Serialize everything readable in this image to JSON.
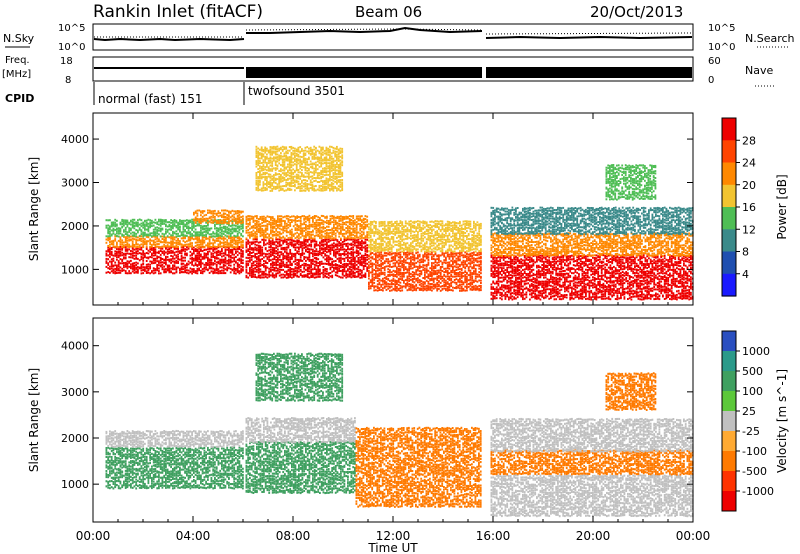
{
  "header": {
    "station": "Rankin Inlet (fitACF)",
    "beam": "Beam 06",
    "date": "20/Oct/2013"
  },
  "strip": {
    "nsky_label": "N.Sky",
    "nsky_ticks": [
      "10^5",
      "10^0"
    ],
    "nsearch_label": "N.Search",
    "nsearch_ticks": [
      "10^5",
      "10^0"
    ],
    "freq_label": "Freq.",
    "freq_unit": "[MHz]",
    "freq_ticks": [
      "18",
      "8"
    ],
    "nave_label": "Nave",
    "nave_ticks": [
      "60",
      "0"
    ],
    "cpid_label": "CPID",
    "cpid_modes": [
      {
        "name": "normal (fast) 151",
        "start_hour": 0,
        "end_hour": 6
      },
      {
        "name": "twofsound 3501",
        "start_hour": 6,
        "end_hour": 24
      }
    ]
  },
  "chart_data": [
    {
      "type": "heatmap",
      "title": "Power",
      "xlabel": "",
      "ylabel": "Slant Range [km]",
      "x_ticks": [
        "00:00",
        "04:00",
        "08:00",
        "12:00",
        "16:00",
        "20:00",
        "00:00"
      ],
      "xlim_hours": [
        0,
        24
      ],
      "y_ticks": [
        1000,
        2000,
        3000,
        4000
      ],
      "ylim": [
        180,
        4600
      ],
      "colorbar": {
        "label": "Power [dB]",
        "ticks": [
          4,
          8,
          12,
          16,
          20,
          24,
          28
        ],
        "colors": [
          "#1a1aff",
          "#1f4fb0",
          "#3a8a8a",
          "#4fbe55",
          "#f2c431",
          "#ff8800",
          "#ff4400",
          "#ee0000"
        ]
      },
      "bands": [
        {
          "t0": 0.5,
          "t1": 6.0,
          "r0": 900,
          "r1": 1500,
          "value": 28
        },
        {
          "t0": 0.5,
          "t1": 6.0,
          "r0": 1500,
          "r1": 1750,
          "value": 20
        },
        {
          "t0": 0.5,
          "t1": 6.0,
          "r0": 1750,
          "r1": 2150,
          "value": 12
        },
        {
          "t0": 4.0,
          "t1": 6.0,
          "r0": 2050,
          "r1": 2350,
          "value": 22
        },
        {
          "t0": 6.1,
          "t1": 11.0,
          "r0": 800,
          "r1": 1700,
          "value": 28
        },
        {
          "t0": 6.1,
          "t1": 11.0,
          "r0": 1700,
          "r1": 2200,
          "value": 20
        },
        {
          "t0": 11.0,
          "t1": 15.5,
          "r0": 500,
          "r1": 1400,
          "value": 26
        },
        {
          "t0": 11.0,
          "t1": 15.5,
          "r0": 1400,
          "r1": 2100,
          "value": 16
        },
        {
          "t0": 15.9,
          "t1": 24.0,
          "r0": 300,
          "r1": 1300,
          "value": 28
        },
        {
          "t0": 15.9,
          "t1": 24.0,
          "r0": 1300,
          "r1": 1800,
          "value": 20
        },
        {
          "t0": 15.9,
          "t1": 24.0,
          "r0": 1800,
          "r1": 2400,
          "value": 10
        },
        {
          "t0": 6.5,
          "t1": 10.0,
          "r0": 2800,
          "r1": 3800,
          "value": 16
        },
        {
          "t0": 20.5,
          "t1": 22.5,
          "r0": 2600,
          "r1": 3400,
          "value": 12
        }
      ]
    },
    {
      "type": "heatmap",
      "title": "Velocity",
      "xlabel": "Time UT",
      "ylabel": "Slant Range [km]",
      "x_ticks": [
        "00:00",
        "04:00",
        "08:00",
        "12:00",
        "16:00",
        "20:00",
        "00:00"
      ],
      "xlim_hours": [
        0,
        24
      ],
      "y_ticks": [
        1000,
        2000,
        3000,
        4000
      ],
      "ylim": [
        180,
        4600
      ],
      "colorbar": {
        "label": "Velocity [m s^-1]",
        "ticks": [
          "1000",
          "500",
          "100",
          "25",
          "-25",
          "-100",
          "-500",
          "-1000"
        ],
        "colors": [
          "#2a4fc0",
          "#2b9a8a",
          "#3fa060",
          "#5cc83a",
          "#c0c0c0",
          "#ffaa33",
          "#ff7a00",
          "#ff3300",
          "#ee0000"
        ]
      },
      "bands": [
        {
          "t0": 0.5,
          "t1": 6.0,
          "r0": 900,
          "r1": 1800,
          "value": 300
        },
        {
          "t0": 0.5,
          "t1": 6.0,
          "r0": 1800,
          "r1": 2150,
          "value": 0
        },
        {
          "t0": 6.1,
          "t1": 10.5,
          "r0": 800,
          "r1": 1900,
          "value": 300
        },
        {
          "t0": 6.1,
          "t1": 10.5,
          "r0": 1900,
          "r1": 2400,
          "value": 0
        },
        {
          "t0": 10.5,
          "t1": 15.5,
          "r0": 500,
          "r1": 1600,
          "value": -300
        },
        {
          "t0": 10.5,
          "t1": 15.5,
          "r0": 1600,
          "r1": 2200,
          "value": -200
        },
        {
          "t0": 15.9,
          "t1": 24.0,
          "r0": 300,
          "r1": 1200,
          "value": 0
        },
        {
          "t0": 15.9,
          "t1": 24.0,
          "r0": 1200,
          "r1": 1700,
          "value": -300
        },
        {
          "t0": 15.9,
          "t1": 24.0,
          "r0": 1700,
          "r1": 2400,
          "value": 0
        },
        {
          "t0": 6.5,
          "t1": 10.0,
          "r0": 2800,
          "r1": 3800,
          "value": 300
        },
        {
          "t0": 20.5,
          "t1": 22.5,
          "r0": 2600,
          "r1": 3400,
          "value": -200
        }
      ]
    }
  ]
}
